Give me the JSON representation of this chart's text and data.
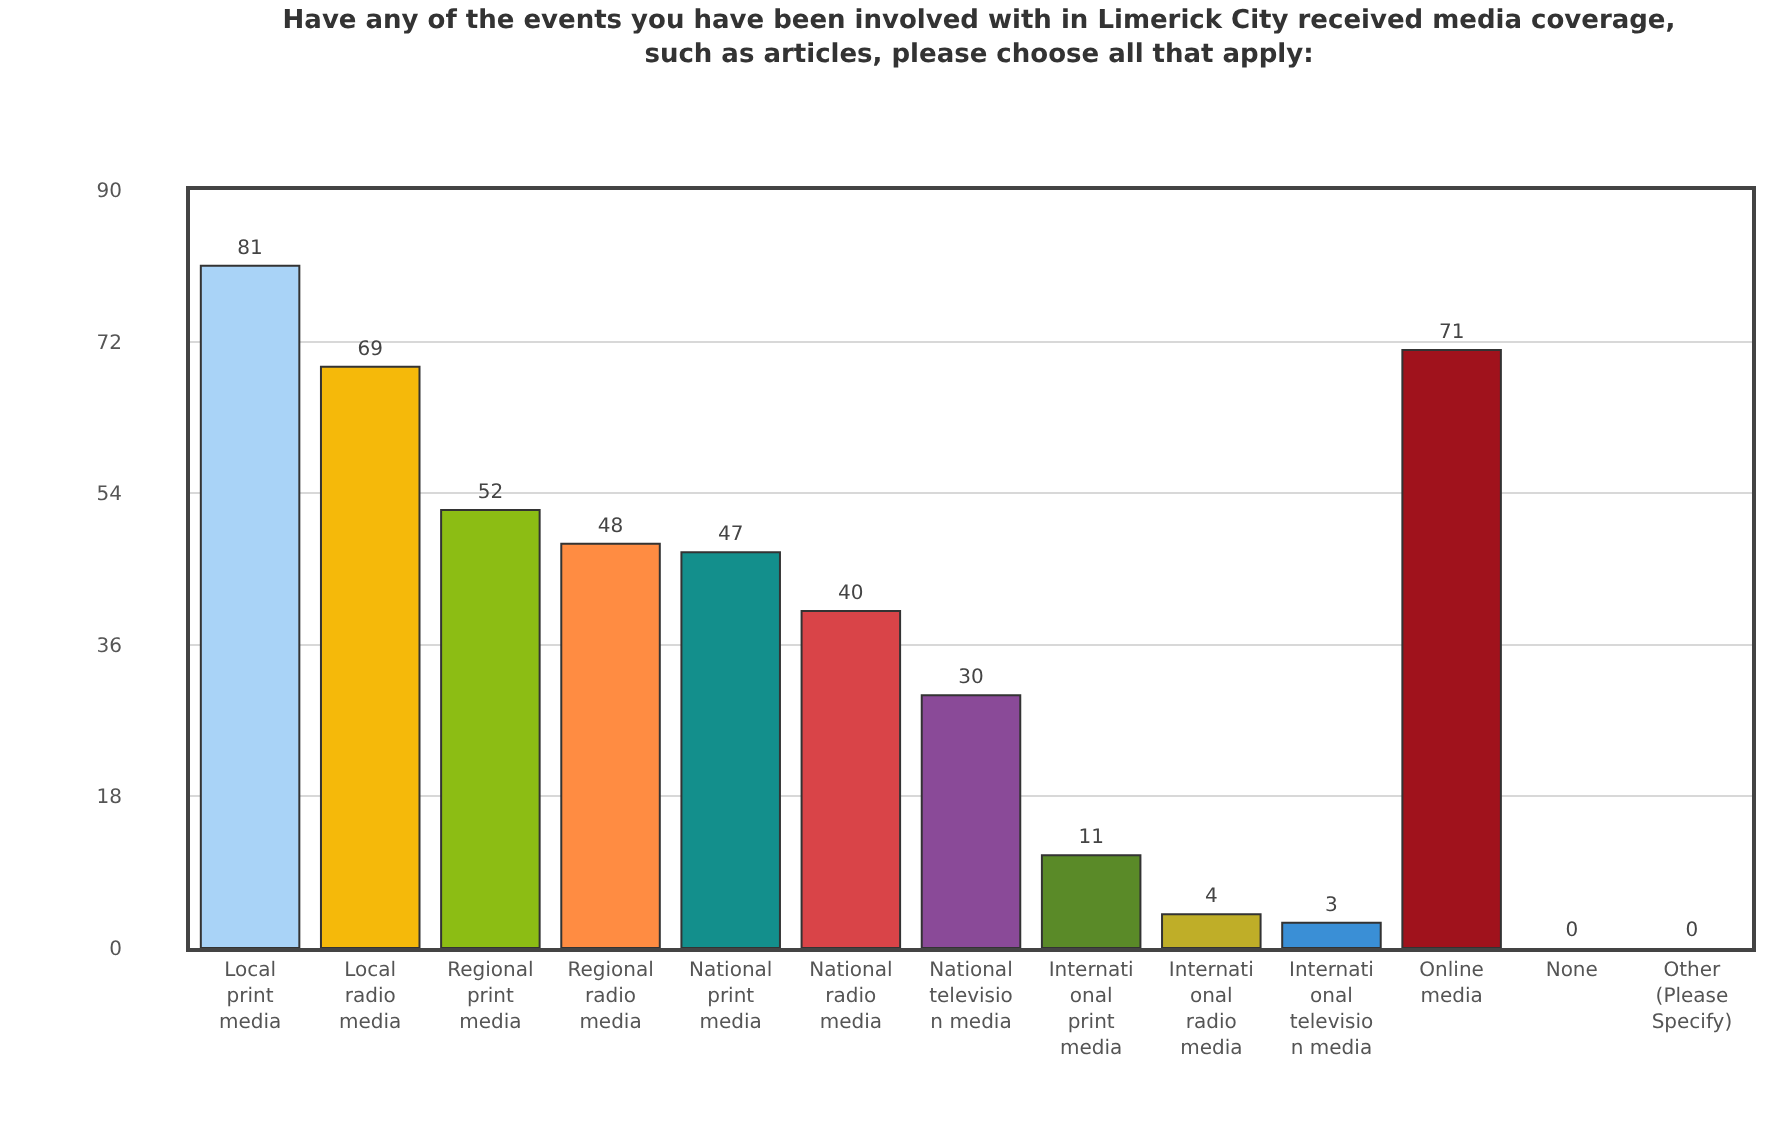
{
  "chart_data": {
    "type": "bar",
    "title": "Have any of the events you have been involved with in Limerick City received media coverage, such as articles, please choose all that apply:",
    "categories": [
      "Local print media",
      "Local radio media",
      "Regional print media",
      "Regional radio media",
      "National print media",
      "National radio media",
      "National television media",
      "International print media",
      "International radio media",
      "International television media",
      "Online media",
      "None",
      "Other (Please Specify)"
    ],
    "values": [
      81,
      69,
      52,
      48,
      47,
      40,
      30,
      11,
      4,
      3,
      71,
      0,
      0
    ],
    "colors": [
      "#a9d3f7",
      "#f5b90a",
      "#8cbd14",
      "#ff8c42",
      "#138f8c",
      "#d94448",
      "#8a4a98",
      "#5a8a28",
      "#bfae28",
      "#3a8fd6",
      "#a0121c",
      null,
      null
    ],
    "ylim": [
      0,
      90
    ],
    "yticks": [
      0,
      18,
      36,
      54,
      72,
      90
    ],
    "grid": "y",
    "data_labels": true
  }
}
